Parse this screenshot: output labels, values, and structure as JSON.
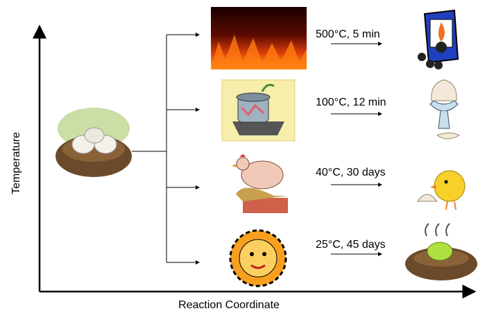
{
  "axes": {
    "y_label": "Temperature",
    "x_label": "Reaction Coordinate"
  },
  "conditions": [
    "500°C, 5 min",
    "100°C, 12 min",
    "40°C, 30 days",
    "25°C, 45 days"
  ]
}
